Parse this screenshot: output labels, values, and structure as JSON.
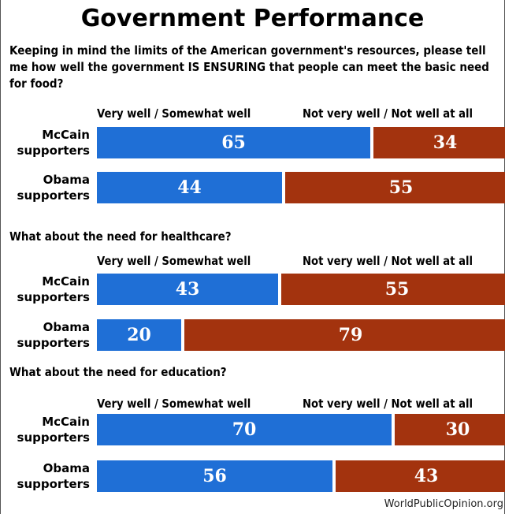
{
  "title": "Government Performance",
  "source": "WorldPublicOpinion.org",
  "colors": {
    "positive": "#1f6fd6",
    "negative": "#a3330e"
  },
  "chart_data": [
    {
      "type": "bar",
      "orientation": "horizontal-stacked",
      "question": "Keeping in mind the limits of the American government's resources, please tell me how well the government IS ENSURING that people can meet the basic need for food?",
      "legend_left": "Very well / Somewhat well",
      "legend_right": "Not very well / Not well at all",
      "categories": [
        "McCain supporters",
        "Obama supporters"
      ],
      "category_lines": [
        [
          "McCain",
          "supporters"
        ],
        [
          "Obama",
          "supporters"
        ]
      ],
      "series": [
        {
          "name": "Very well / Somewhat well",
          "values": [
            65,
            44
          ]
        },
        {
          "name": "Not very well / Not well at all",
          "values": [
            34,
            55
          ]
        }
      ]
    },
    {
      "type": "bar",
      "orientation": "horizontal-stacked",
      "question": "What about the need for healthcare?",
      "legend_left": "Very well / Somewhat well",
      "legend_right": "Not very well / Not well at all",
      "categories": [
        "McCain supporters",
        "Obama supporters"
      ],
      "category_lines": [
        [
          "McCain",
          "supporters"
        ],
        [
          "Obama",
          "supporters"
        ]
      ],
      "series": [
        {
          "name": "Very well / Somewhat well",
          "values": [
            43,
            20
          ]
        },
        {
          "name": "Not very well / Not well at all",
          "values": [
            55,
            79
          ]
        }
      ]
    },
    {
      "type": "bar",
      "orientation": "horizontal-stacked",
      "question": "What about the need for education?",
      "legend_left": "Very well / Somewhat well",
      "legend_right": "Not very well / Not well at all",
      "categories": [
        "McCain supporters",
        "Obama supporters"
      ],
      "category_lines": [
        [
          "McCain",
          "supporters"
        ],
        [
          "Obama",
          "supporters"
        ]
      ],
      "series": [
        {
          "name": "Very well / Somewhat well",
          "values": [
            70,
            56
          ]
        },
        {
          "name": "Not very well / Not well at all",
          "values": [
            30,
            43
          ]
        }
      ]
    }
  ]
}
